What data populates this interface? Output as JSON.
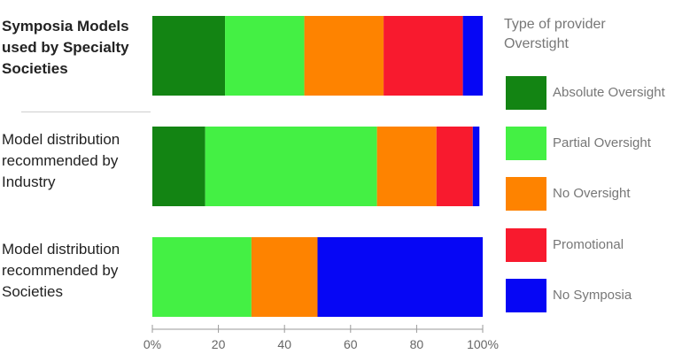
{
  "chart_data": {
    "type": "bar",
    "orientation": "horizontal",
    "stacked": true,
    "categories": [
      "Symposia Models used by Specialty Societies",
      "Model distribution recommended by Industry",
      "Model distribution recommended by Societies"
    ],
    "series": [
      {
        "name": "Absolute Oversight",
        "color": "#138413",
        "values": [
          22,
          16,
          0
        ]
      },
      {
        "name": "Partial Oversight",
        "color": "#44f044",
        "values": [
          24,
          52,
          30
        ]
      },
      {
        "name": "No Oversight",
        "color": "#fe8300",
        "values": [
          24,
          18,
          20
        ]
      },
      {
        "name": "Promotional",
        "color": "#f81a2e",
        "values": [
          24,
          11,
          0
        ]
      },
      {
        "name": "No Symposia",
        "color": "#0606f5",
        "values": [
          6,
          2,
          50
        ]
      }
    ],
    "xlim": [
      0,
      100
    ],
    "xticks": [
      "0%",
      "20",
      "40",
      "60",
      "80",
      "100%"
    ],
    "legend_title": "Type of provider Overstight",
    "legend_position": "right",
    "grid": false
  }
}
